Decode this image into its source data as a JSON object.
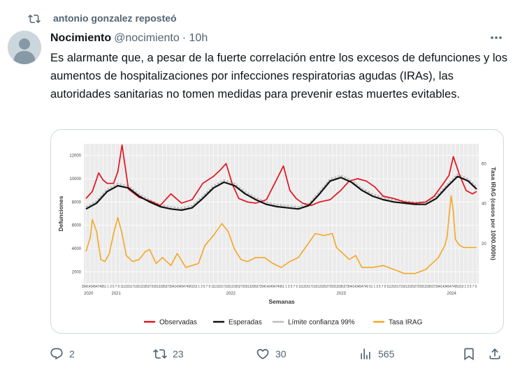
{
  "repost": {
    "text": "antonio gonzalez reposteó"
  },
  "tweet": {
    "name": "Nocimiento",
    "handle": "@nocimiento",
    "time": "· 10h",
    "text": "Es alarmante que, a pesar de la fuerte correlación entre los excesos de defunciones y los aumentos de hospitalizaciones por infecciones respiratorias agudas (IRAs), las autoridades sanitarias no tomen medidas para prevenir estas muertes evitables."
  },
  "actions": {
    "replies": "2",
    "reposts": "23",
    "likes": "30",
    "views": "565"
  },
  "colors": {
    "observadas": "#e3121c",
    "esperadas": "#111111",
    "limite": "#bdbdbd",
    "irag": "#f5a623",
    "muted": "#536471"
  },
  "chart_data": {
    "type": "line",
    "title": "",
    "xlabel": "Semanas",
    "ylabel": "Defunciones",
    "y2label": "Tasa IRAG (casos por 1000.000h)",
    "ylim": [
      1000,
      13000
    ],
    "y2lim": [
      0,
      70
    ],
    "yticks": [
      "2000",
      "4000",
      "6000",
      "8000",
      "10000",
      "12000"
    ],
    "y2ticks": [
      "20",
      "40",
      "60"
    ],
    "x_week_labels": "39414345474951 1 3 5 7 9 11131517192123252729313335373941434547495153 1 3 5 7 9 111315171921232527293133353739414345474951 1 3 5 7 9 1113151719212325272931333537394143454749 51 1 3 5 7 9 11131517192123252729313335373941434547495153 1 3 5 7 9",
    "x_years": [
      "2020",
      "2021",
      "2022",
      "2023",
      "2024"
    ],
    "x_year_pos": [
      0,
      13,
      67,
      119,
      171
    ],
    "n_weeks": 184,
    "legend": [
      "Observadas",
      "Esperadas",
      "Límite confianza 99%",
      "Tasa IRAG"
    ],
    "legend_position": "bottom",
    "series": [
      {
        "name": "Observadas",
        "axis": "left",
        "x": [
          0,
          3,
          6,
          8,
          10,
          13,
          15,
          17,
          20,
          25,
          30,
          35,
          40,
          45,
          50,
          55,
          60,
          63,
          66,
          69,
          72,
          76,
          80,
          85,
          90,
          93,
          96,
          99,
          102,
          106,
          110,
          115,
          120,
          124,
          128,
          132,
          136,
          140,
          145,
          150,
          155,
          160,
          164,
          168,
          171,
          173,
          176,
          179,
          182,
          184
        ],
        "values": [
          8300,
          8900,
          10500,
          9900,
          9600,
          9600,
          10600,
          12900,
          9100,
          8400,
          8100,
          7700,
          8700,
          7900,
          8200,
          9600,
          10200,
          10700,
          11300,
          9500,
          8300,
          8000,
          7900,
          8200,
          10000,
          11100,
          9000,
          8300,
          7900,
          7700,
          8000,
          8200,
          9000,
          9800,
          10000,
          9800,
          9300,
          8500,
          8300,
          8000,
          7900,
          8000,
          8500,
          9500,
          10300,
          11900,
          10300,
          9000,
          8700,
          8900
        ]
      },
      {
        "name": "Esperadas",
        "axis": "left",
        "x": [
          0,
          5,
          10,
          15,
          20,
          25,
          30,
          35,
          40,
          45,
          50,
          55,
          60,
          65,
          70,
          75,
          80,
          85,
          90,
          95,
          100,
          105,
          110,
          115,
          120,
          125,
          130,
          135,
          140,
          145,
          150,
          155,
          160,
          165,
          170,
          175,
          180,
          184
        ],
        "values": [
          7400,
          7900,
          8900,
          9400,
          9200,
          8500,
          8000,
          7600,
          7400,
          7300,
          7500,
          8300,
          9200,
          9700,
          9400,
          8700,
          8200,
          7800,
          7600,
          7500,
          7400,
          7700,
          8700,
          9800,
          10100,
          9700,
          9000,
          8500,
          8200,
          8000,
          7900,
          7800,
          7800,
          8300,
          9300,
          10200,
          9800,
          9100
        ]
      },
      {
        "name": "Tasa IRAG",
        "axis": "right",
        "x": [
          0,
          2,
          3,
          5,
          7,
          9,
          11,
          13,
          15,
          17,
          19,
          22,
          25,
          28,
          30,
          33,
          36,
          40,
          43,
          47,
          50,
          53,
          56,
          60,
          64,
          67,
          70,
          73,
          76,
          80,
          84,
          88,
          92,
          96,
          100,
          104,
          108,
          112,
          116,
          118,
          121,
          124,
          127,
          130,
          135,
          140,
          145,
          150,
          155,
          160,
          163,
          166,
          169,
          170,
          171,
          172,
          173,
          174,
          176,
          178,
          180,
          182,
          184
        ],
        "values": [
          16,
          23,
          32,
          26,
          12,
          11,
          15,
          25,
          33,
          25,
          14,
          11,
          12,
          16,
          17,
          10,
          13,
          9,
          15,
          8,
          9,
          10,
          19,
          24,
          30,
          26,
          17,
          12,
          11,
          13,
          13,
          10,
          8,
          11,
          13,
          19,
          25,
          24,
          25,
          18,
          15,
          12,
          14,
          8,
          8,
          9,
          7,
          5,
          5,
          7,
          10,
          13,
          19,
          23,
          34,
          44,
          36,
          22,
          19,
          18,
          18,
          18,
          18
        ]
      }
    ]
  }
}
